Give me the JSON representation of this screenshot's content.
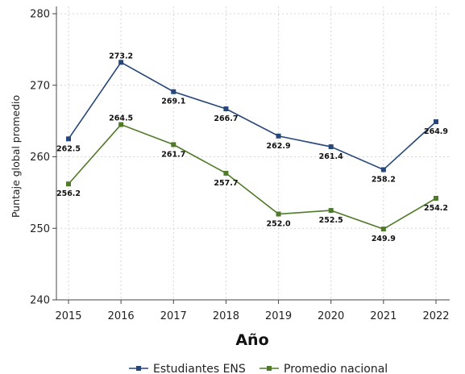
{
  "chart_data": {
    "type": "line",
    "x": [
      2015,
      2016,
      2017,
      2018,
      2019,
      2020,
      2021,
      2022
    ],
    "series": [
      {
        "name": "Estudiantes ENS",
        "color": "#26477a",
        "values": [
          262.5,
          273.2,
          269.1,
          266.7,
          262.9,
          261.4,
          258.2,
          264.9
        ],
        "labels": [
          "262.5",
          "273.2",
          "269.1",
          "266.7",
          "262.9",
          "261.4",
          "258.2",
          "264.9"
        ]
      },
      {
        "name": "Promedio nacional",
        "color": "#4f7a28",
        "values": [
          256.2,
          264.5,
          261.7,
          257.7,
          252.0,
          252.5,
          249.9,
          254.2
        ],
        "labels": [
          "256.2",
          "264.5",
          "261.7",
          "257.7",
          "252.0",
          "252.5",
          "249.9",
          "254.2"
        ]
      }
    ],
    "xlabel": "Año",
    "ylabel": "Puntaje global promedio",
    "ylim": [
      240,
      280
    ],
    "yticks": [
      240,
      250,
      260,
      270,
      280
    ],
    "grid": true,
    "legend": "bottom"
  }
}
